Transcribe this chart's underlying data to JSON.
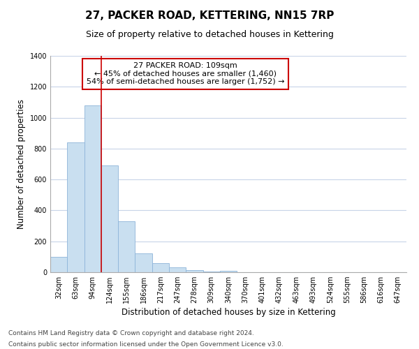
{
  "title": "27, PACKER ROAD, KETTERING, NN15 7RP",
  "subtitle": "Size of property relative to detached houses in Kettering",
  "xlabel": "Distribution of detached houses by size in Kettering",
  "ylabel": "Number of detached properties",
  "bar_color": "#c9dff0",
  "bar_edge_color": "#8db4d9",
  "categories": [
    "32sqm",
    "63sqm",
    "94sqm",
    "124sqm",
    "155sqm",
    "186sqm",
    "217sqm",
    "247sqm",
    "278sqm",
    "309sqm",
    "340sqm",
    "370sqm",
    "401sqm",
    "432sqm",
    "463sqm",
    "493sqm",
    "524sqm",
    "555sqm",
    "586sqm",
    "616sqm",
    "647sqm"
  ],
  "values": [
    100,
    840,
    1080,
    690,
    330,
    120,
    60,
    30,
    15,
    5,
    10,
    0,
    0,
    0,
    0,
    0,
    0,
    0,
    0,
    0,
    0
  ],
  "ylim": [
    0,
    1400
  ],
  "yticks": [
    0,
    200,
    400,
    600,
    800,
    1000,
    1200,
    1400
  ],
  "vline_color": "#cc0000",
  "annotation_title": "27 PACKER ROAD: 109sqm",
  "annotation_line1": "← 45% of detached houses are smaller (1,460)",
  "annotation_line2": "54% of semi-detached houses are larger (1,752) →",
  "annotation_box_color": "#ffffff",
  "annotation_box_edge_color": "#cc0000",
  "footer_line1": "Contains HM Land Registry data © Crown copyright and database right 2024.",
  "footer_line2": "Contains public sector information licensed under the Open Government Licence v3.0.",
  "background_color": "#ffffff",
  "grid_color": "#c8d4e8",
  "title_fontsize": 11,
  "subtitle_fontsize": 9,
  "axis_label_fontsize": 8.5,
  "tick_fontsize": 7,
  "footer_fontsize": 6.5,
  "ann_fontsize": 8
}
